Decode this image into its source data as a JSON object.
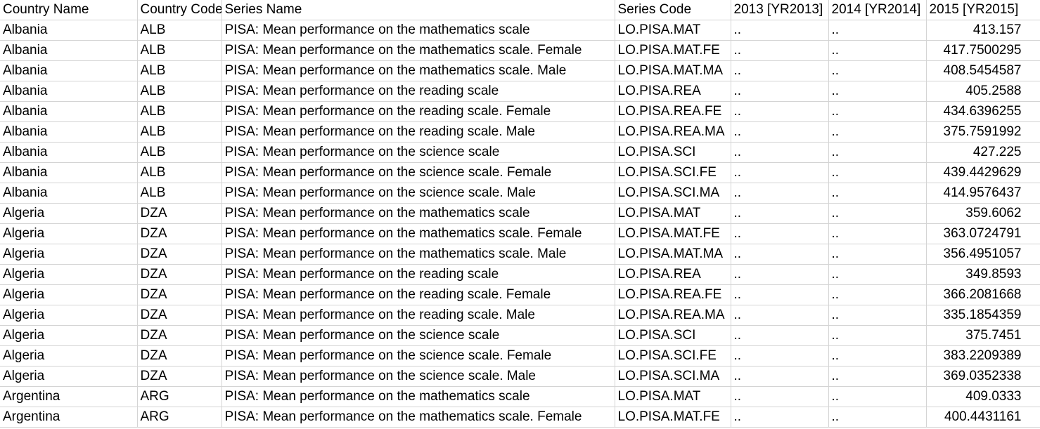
{
  "headers": [
    "Country Name",
    "Country Code",
    "Series Name",
    "Series Code",
    "2013 [YR2013]",
    "2014 [YR2014]",
    "2015 [YR2015]"
  ],
  "rows": [
    {
      "country": "Albania",
      "code": "ALB",
      "series": "PISA: Mean performance on the mathematics scale",
      "scode": "LO.PISA.MAT",
      "y2013": "..",
      "y2014": "..",
      "y2015": "413.157"
    },
    {
      "country": "Albania",
      "code": "ALB",
      "series": "PISA: Mean performance on the mathematics scale. Female",
      "scode": "LO.PISA.MAT.FE",
      "y2013": "..",
      "y2014": "..",
      "y2015": "417.7500295"
    },
    {
      "country": "Albania",
      "code": "ALB",
      "series": "PISA: Mean performance on the mathematics scale. Male",
      "scode": "LO.PISA.MAT.MA",
      "y2013": "..",
      "y2014": "..",
      "y2015": "408.5454587"
    },
    {
      "country": "Albania",
      "code": "ALB",
      "series": "PISA: Mean performance on the reading scale",
      "scode": "LO.PISA.REA",
      "y2013": "..",
      "y2014": "..",
      "y2015": "405.2588"
    },
    {
      "country": "Albania",
      "code": "ALB",
      "series": "PISA: Mean performance on the reading scale. Female",
      "scode": "LO.PISA.REA.FE",
      "y2013": "..",
      "y2014": "..",
      "y2015": "434.6396255"
    },
    {
      "country": "Albania",
      "code": "ALB",
      "series": "PISA: Mean performance on the reading scale. Male",
      "scode": "LO.PISA.REA.MA",
      "y2013": "..",
      "y2014": "..",
      "y2015": "375.7591992"
    },
    {
      "country": "Albania",
      "code": "ALB",
      "series": "PISA: Mean performance on the science scale",
      "scode": "LO.PISA.SCI",
      "y2013": "..",
      "y2014": "..",
      "y2015": "427.225"
    },
    {
      "country": "Albania",
      "code": "ALB",
      "series": "PISA: Mean performance on the science scale. Female",
      "scode": "LO.PISA.SCI.FE",
      "y2013": "..",
      "y2014": "..",
      "y2015": "439.4429629"
    },
    {
      "country": "Albania",
      "code": "ALB",
      "series": "PISA: Mean performance on the science scale. Male",
      "scode": "LO.PISA.SCI.MA",
      "y2013": "..",
      "y2014": "..",
      "y2015": "414.9576437"
    },
    {
      "country": "Algeria",
      "code": "DZA",
      "series": "PISA: Mean performance on the mathematics scale",
      "scode": "LO.PISA.MAT",
      "y2013": "..",
      "y2014": "..",
      "y2015": "359.6062"
    },
    {
      "country": "Algeria",
      "code": "DZA",
      "series": "PISA: Mean performance on the mathematics scale. Female",
      "scode": "LO.PISA.MAT.FE",
      "y2013": "..",
      "y2014": "..",
      "y2015": "363.0724791"
    },
    {
      "country": "Algeria",
      "code": "DZA",
      "series": "PISA: Mean performance on the mathematics scale. Male",
      "scode": "LO.PISA.MAT.MA",
      "y2013": "..",
      "y2014": "..",
      "y2015": "356.4951057"
    },
    {
      "country": "Algeria",
      "code": "DZA",
      "series": "PISA: Mean performance on the reading scale",
      "scode": "LO.PISA.REA",
      "y2013": "..",
      "y2014": "..",
      "y2015": "349.8593"
    },
    {
      "country": "Algeria",
      "code": "DZA",
      "series": "PISA: Mean performance on the reading scale. Female",
      "scode": "LO.PISA.REA.FE",
      "y2013": "..",
      "y2014": "..",
      "y2015": "366.2081668"
    },
    {
      "country": "Algeria",
      "code": "DZA",
      "series": "PISA: Mean performance on the reading scale. Male",
      "scode": "LO.PISA.REA.MA",
      "y2013": "..",
      "y2014": "..",
      "y2015": "335.1854359"
    },
    {
      "country": "Algeria",
      "code": "DZA",
      "series": "PISA: Mean performance on the science scale",
      "scode": "LO.PISA.SCI",
      "y2013": "..",
      "y2014": "..",
      "y2015": "375.7451"
    },
    {
      "country": "Algeria",
      "code": "DZA",
      "series": "PISA: Mean performance on the science scale. Female",
      "scode": "LO.PISA.SCI.FE",
      "y2013": "..",
      "y2014": "..",
      "y2015": "383.2209389"
    },
    {
      "country": "Algeria",
      "code": "DZA",
      "series": "PISA: Mean performance on the science scale. Male",
      "scode": "LO.PISA.SCI.MA",
      "y2013": "..",
      "y2014": "..",
      "y2015": "369.0352338"
    },
    {
      "country": "Argentina",
      "code": "ARG",
      "series": "PISA: Mean performance on the mathematics scale",
      "scode": "LO.PISA.MAT",
      "y2013": "..",
      "y2014": "..",
      "y2015": "409.0333"
    },
    {
      "country": "Argentina",
      "code": "ARG",
      "series": "PISA: Mean performance on the mathematics scale. Female",
      "scode": "LO.PISA.MAT.FE",
      "y2013": "..",
      "y2014": "..",
      "y2015": "400.4431161"
    }
  ]
}
